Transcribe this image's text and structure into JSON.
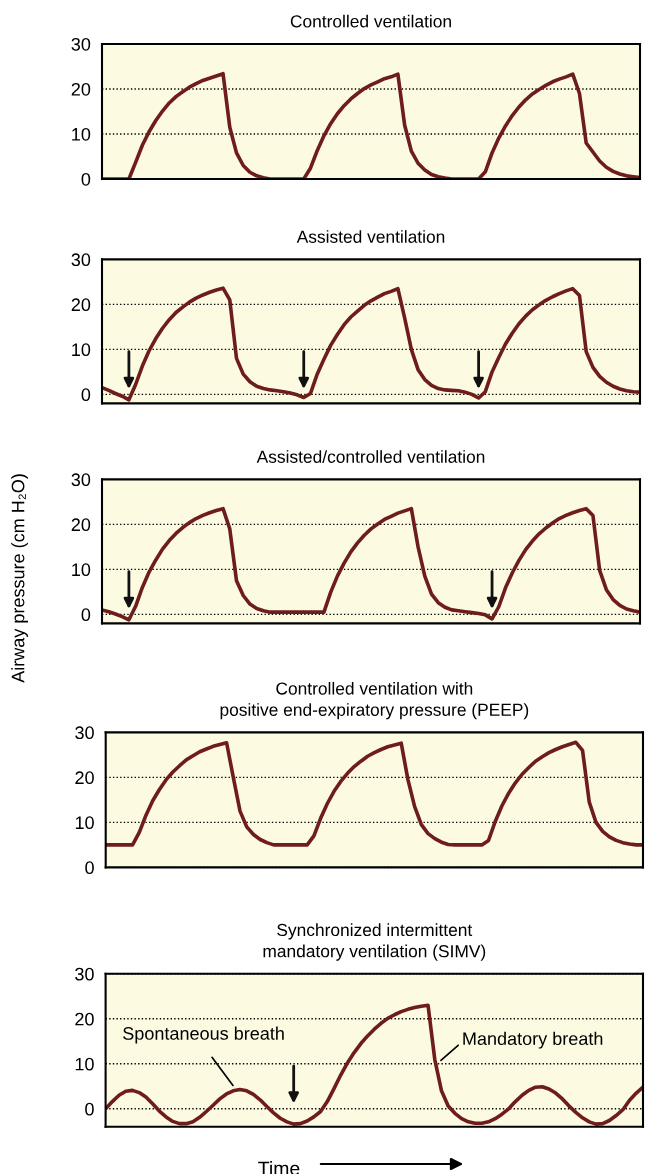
{
  "chart_data": [
    {
      "type": "line",
      "title": "Controlled ventilation",
      "tick_labels": "y",
      "grid": "y",
      "ylim": [
        0,
        30
      ],
      "yticks": [
        0,
        10,
        20,
        30
      ],
      "categories": [
        null,
        null,
        null,
        null,
        null,
        null,
        null,
        null,
        null,
        null,
        null,
        null,
        null,
        null,
        null,
        null,
        null,
        null,
        null,
        null,
        null,
        null,
        null,
        null,
        null,
        null,
        null,
        null,
        null,
        null,
        null,
        null,
        null,
        null,
        null,
        null,
        null,
        null,
        null,
        null,
        null,
        null,
        null,
        null,
        null,
        null,
        null,
        null,
        null,
        null,
        null,
        null,
        null,
        null,
        null,
        null,
        null,
        null,
        null,
        null,
        null,
        null,
        null,
        null,
        null,
        null,
        null,
        null,
        null,
        null,
        null,
        null,
        null,
        null,
        null,
        null,
        null,
        null,
        null,
        null,
        null
      ],
      "series": [
        {
          "color": "#6e1c1c",
          "values": [
            0,
            0,
            0,
            0,
            0,
            3.7,
            7.5,
            10.5,
            13.0,
            15.1,
            16.9,
            18.3,
            19.4,
            20.4,
            21.2,
            21.9,
            22.4,
            22.9,
            23.4,
            11.5,
            5.8,
            3.0,
            1.5,
            0.7,
            0.3,
            0,
            0,
            0,
            0,
            0,
            0,
            2.4,
            6.3,
            9.6,
            12.3,
            14.5,
            16.3,
            17.8,
            19.0,
            20.1,
            20.9,
            21.6,
            22.3,
            22.7,
            23.3,
            12.0,
            6.2,
            3.5,
            2.0,
            1.0,
            0.5,
            0.2,
            0,
            0,
            0,
            0,
            0,
            1.6,
            5.8,
            9.1,
            11.8,
            14.1,
            16.0,
            17.6,
            18.9,
            19.9,
            20.8,
            21.6,
            22.2,
            22.7,
            23.3,
            19.0,
            8.0,
            6.0,
            4.0,
            2.6,
            1.7,
            1.1,
            0.7,
            0.5,
            0.3
          ]
        }
      ]
    },
    {
      "type": "line",
      "title": "Assisted ventilation",
      "tick_labels": "y",
      "grid": "y",
      "ylim": [
        -2,
        30
      ],
      "yticks": [
        0,
        10,
        20,
        30
      ],
      "categories": [
        null,
        null,
        null,
        null,
        null,
        null,
        null,
        null,
        null,
        null,
        null,
        null,
        null,
        null,
        null,
        null,
        null,
        null,
        null,
        null,
        null,
        null,
        null,
        null,
        null,
        null,
        null,
        null,
        null,
        null,
        null,
        null,
        null,
        null,
        null,
        null,
        null,
        null,
        null,
        null,
        null,
        null,
        null,
        null,
        null,
        null,
        null,
        null,
        null,
        null,
        null,
        null,
        null,
        null,
        null,
        null,
        null,
        null,
        null,
        null,
        null,
        null,
        null,
        null,
        null,
        null,
        null,
        null,
        null,
        null,
        null,
        null,
        null,
        null,
        null,
        null,
        null,
        null,
        null,
        null,
        null
      ],
      "series": [
        {
          "color": "#6e1c1c",
          "values": [
            1.5,
            0.9,
            0.2,
            -0.4,
            -1.2,
            2.2,
            6.3,
            9.7,
            12.4,
            14.7,
            16.6,
            18.2,
            19.4,
            20.5,
            21.4,
            22.1,
            22.7,
            23.2,
            23.6,
            21.0,
            8.0,
            4.5,
            2.8,
            1.8,
            1.3,
            1.0,
            0.8,
            0.6,
            0.3,
            -0.1,
            -0.7,
            0.2,
            4.5,
            7.8,
            10.9,
            13.3,
            15.5,
            17.2,
            18.5,
            19.8,
            20.8,
            21.6,
            22.4,
            22.9,
            23.5,
            17.0,
            10.0,
            5.5,
            3.3,
            2.0,
            1.3,
            1.0,
            0.9,
            0.8,
            0.5,
            0,
            -0.8,
            0.6,
            5.0,
            8.2,
            11.2,
            13.6,
            15.7,
            17.4,
            18.8,
            19.9,
            20.9,
            21.7,
            22.4,
            23.0,
            23.5,
            22.0,
            9.5,
            6.0,
            4.0,
            2.7,
            1.8,
            1.2,
            0.8,
            0.6,
            0.5
          ]
        }
      ]
    },
    {
      "type": "line",
      "title": "Assisted/controlled ventilation",
      "ylabel": "Airway pressure (cm H₂O)",
      "tick_labels": "y",
      "grid": "y",
      "ylim": [
        -2,
        30
      ],
      "yticks": [
        0,
        10,
        20,
        30
      ],
      "categories": [
        null,
        null,
        null,
        null,
        null,
        null,
        null,
        null,
        null,
        null,
        null,
        null,
        null,
        null,
        null,
        null,
        null,
        null,
        null,
        null,
        null,
        null,
        null,
        null,
        null,
        null,
        null,
        null,
        null,
        null,
        null,
        null,
        null,
        null,
        null,
        null,
        null,
        null,
        null,
        null,
        null,
        null,
        null,
        null,
        null,
        null,
        null,
        null,
        null,
        null,
        null,
        null,
        null,
        null,
        null,
        null,
        null,
        null,
        null,
        null,
        null,
        null,
        null,
        null,
        null,
        null,
        null,
        null,
        null,
        null,
        null,
        null,
        null,
        null,
        null,
        null,
        null,
        null,
        null,
        null,
        null
      ],
      "series": [
        {
          "color": "#6e1c1c",
          "values": [
            1.0,
            0.6,
            0.1,
            -0.5,
            -1.2,
            1.8,
            6.0,
            9.4,
            12.1,
            14.5,
            16.4,
            18.0,
            19.3,
            20.4,
            21.3,
            22.0,
            22.6,
            23.1,
            23.5,
            19.0,
            7.5,
            4.2,
            2.3,
            1.3,
            0.8,
            0.5,
            0.5,
            0.5,
            0.5,
            0.5,
            0.5,
            0.5,
            0.5,
            0.5,
            4.9,
            8.5,
            11.4,
            13.9,
            15.9,
            17.6,
            19.0,
            20.1,
            21.1,
            21.8,
            22.5,
            23.0,
            23.5,
            15.0,
            8.5,
            4.5,
            2.6,
            1.6,
            1.0,
            0.8,
            0.6,
            0.4,
            0.2,
            -0.1,
            -1.0,
            1.7,
            5.9,
            9.2,
            12.0,
            14.4,
            16.3,
            17.9,
            19.2,
            20.3,
            21.3,
            22.0,
            22.6,
            23.1,
            23.5,
            22.0,
            9.8,
            5.5,
            3.3,
            2.0,
            1.2,
            0.8,
            0.5
          ]
        }
      ]
    },
    {
      "type": "line",
      "title": "Controlled ventilation with\npositive end-expiratory pressure (PEEP)",
      "tick_labels": "y",
      "grid": "y",
      "ylim": [
        0,
        30
      ],
      "yticks": [
        0,
        10,
        20,
        30
      ],
      "categories": [
        null,
        null,
        null,
        null,
        null,
        null,
        null,
        null,
        null,
        null,
        null,
        null,
        null,
        null,
        null,
        null,
        null,
        null,
        null,
        null,
        null,
        null,
        null,
        null,
        null,
        null,
        null,
        null,
        null,
        null,
        null,
        null,
        null,
        null,
        null,
        null,
        null,
        null,
        null,
        null,
        null,
        null,
        null,
        null,
        null,
        null,
        null,
        null,
        null,
        null,
        null,
        null,
        null,
        null,
        null,
        null,
        null,
        null,
        null,
        null,
        null,
        null,
        null,
        null,
        null,
        null,
        null,
        null,
        null,
        null,
        null,
        null,
        null,
        null,
        null,
        null,
        null,
        null,
        null,
        null,
        null
      ],
      "series": [
        {
          "color": "#6e1c1c",
          "values": [
            5,
            5,
            5,
            5,
            5,
            7.8,
            11.6,
            14.8,
            17.3,
            19.5,
            21.2,
            22.6,
            23.9,
            24.8,
            25.7,
            26.3,
            26.9,
            27.3,
            27.7,
            20.0,
            12.5,
            9.0,
            7.3,
            6.2,
            5.5,
            5.0,
            5,
            5,
            5,
            5,
            5,
            7.0,
            10.9,
            14.2,
            16.9,
            19.1,
            20.9,
            22.4,
            23.6,
            24.7,
            25.5,
            26.2,
            26.8,
            27.2,
            27.6,
            19.5,
            13.5,
            9.5,
            7.5,
            6.4,
            5.6,
            5.1,
            5,
            5,
            5,
            5,
            5,
            6.0,
            10.2,
            13.7,
            16.5,
            18.8,
            20.7,
            22.2,
            23.6,
            24.6,
            25.5,
            26.2,
            26.8,
            27.3,
            27.8,
            26.0,
            14.5,
            10.0,
            8.0,
            6.8,
            6.0,
            5.5,
            5.2,
            5.0,
            5.0
          ]
        }
      ]
    },
    {
      "type": "line",
      "title": "Synchronized intermittent\nmandatory ventilation (SIMV)",
      "xlabel": "Time",
      "tick_labels": "y",
      "grid": "y",
      "ylim": [
        -4,
        30
      ],
      "yticks": [
        0,
        10,
        20,
        30
      ],
      "annotations": [
        "Spontaneous breath",
        "Mandatory breath"
      ],
      "categories": [
        null,
        null,
        null,
        null,
        null,
        null,
        null,
        null,
        null,
        null,
        null,
        null,
        null,
        null,
        null,
        null,
        null,
        null,
        null,
        null,
        null,
        null,
        null,
        null,
        null,
        null,
        null,
        null,
        null,
        null,
        null,
        null,
        null,
        null,
        null,
        null,
        null,
        null,
        null,
        null,
        null,
        null,
        null,
        null,
        null,
        null,
        null,
        null,
        null,
        null,
        null,
        null,
        null,
        null,
        null,
        null,
        null,
        null,
        null,
        null,
        null,
        null,
        null,
        null,
        null,
        null,
        null,
        null,
        null,
        null,
        null,
        null,
        null,
        null,
        null,
        null,
        null,
        null,
        null,
        null,
        null
      ],
      "series": [
        {
          "color": "#6e1c1c",
          "values": [
            0,
            1.6,
            3.0,
            3.9,
            4.1,
            3.6,
            2.6,
            1.1,
            -0.5,
            -1.8,
            -2.8,
            -3.3,
            -3.3,
            -2.9,
            -1.9,
            -0.6,
            0.8,
            2.2,
            3.3,
            4.0,
            4.3,
            4.0,
            3.2,
            2.0,
            0.5,
            -0.9,
            -2.1,
            -2.9,
            -3.4,
            -3.3,
            -2.7,
            -1.8,
            -0.6,
            1.6,
            4.5,
            7.5,
            10.2,
            12.5,
            14.5,
            16.2,
            17.7,
            19.0,
            20.1,
            20.9,
            21.6,
            22.1,
            22.5,
            22.8,
            23.0,
            11.0,
            4.0,
            0.6,
            -1.0,
            -2.2,
            -2.9,
            -3.2,
            -3.2,
            -2.9,
            -2.2,
            -1.2,
            0,
            1.6,
            3.0,
            4.1,
            4.8,
            4.9,
            4.4,
            3.5,
            2.2,
            0.6,
            -0.8,
            -2.0,
            -2.9,
            -3.4,
            -3.3,
            -2.6,
            -1.5,
            -0.2,
            1.9,
            3.5,
            4.8
          ]
        }
      ]
    }
  ]
}
